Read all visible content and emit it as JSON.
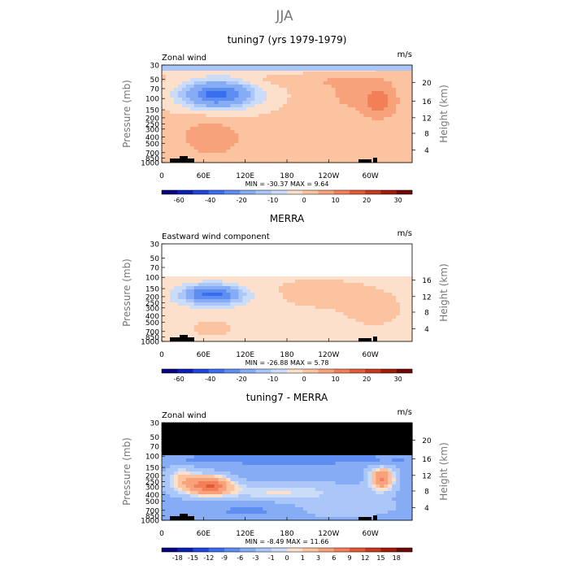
{
  "figure": {
    "title": "JJA"
  },
  "chart_data": [
    {
      "type": "heatmap",
      "title": "tuning7 (yrs 1979-1979)",
      "left_label": "Zonal wind",
      "right_label": "m/s",
      "ylabel": "Pressure (mb)",
      "ylabel_right": "Height (km)",
      "x_ticks": [
        "0",
        "60E",
        "120E",
        "180",
        "120W",
        "60W"
      ],
      "y_ticks": [
        "30",
        "50",
        "70",
        "100",
        "150",
        "200",
        "250",
        "300",
        "400",
        "500",
        "700",
        "850",
        "1000"
      ],
      "height_ticks": [
        "4",
        "8",
        "12",
        "16",
        "20"
      ],
      "stats": "MIN = -30.37   MAX =   9.64",
      "min": -30.37,
      "max": 9.64,
      "colorbar_labels": [
        "-60",
        "-40",
        "-20",
        "-10",
        "0",
        "10",
        "20",
        "30"
      ],
      "data_top_pressure": 30
    },
    {
      "type": "heatmap",
      "title": "MERRA",
      "left_label": "Eastward wind component",
      "right_label": "m/s",
      "ylabel": "Pressure (mb)",
      "ylabel_right": "Height (km)",
      "x_ticks": [
        "0",
        "60E",
        "120E",
        "180",
        "120W",
        "60W"
      ],
      "y_ticks": [
        "30",
        "50",
        "70",
        "100",
        "150",
        "200",
        "250",
        "300",
        "400",
        "500",
        "700",
        "850",
        "1000"
      ],
      "height_ticks": [
        "4",
        "8",
        "12",
        "16"
      ],
      "stats": "MIN = -26.88   MAX =   5.78",
      "min": -26.88,
      "max": 5.78,
      "colorbar_labels": [
        "-60",
        "-40",
        "-20",
        "-10",
        "0",
        "10",
        "20",
        "30"
      ],
      "data_top_pressure": 100
    },
    {
      "type": "heatmap",
      "title": "tuning7 - MERRA",
      "left_label": "Zonal wind",
      "right_label": "m/s",
      "ylabel": "Pressure (mb)",
      "ylabel_right": "Height (km)",
      "x_ticks": [
        "0",
        "60E",
        "120E",
        "180",
        "120W",
        "60W"
      ],
      "y_ticks": [
        "30",
        "50",
        "70",
        "100",
        "150",
        "200",
        "250",
        "300",
        "400",
        "500",
        "700",
        "850",
        "1000"
      ],
      "height_ticks": [
        "4",
        "8",
        "12",
        "16",
        "20"
      ],
      "stats": "MIN = -8.49   MAX =  11.66",
      "min": -8.49,
      "max": 11.66,
      "colorbar_labels": [
        "-18",
        "-15",
        "-12",
        "-9",
        "-6",
        "-3",
        "-1",
        "0",
        "1",
        "3",
        "6",
        "9",
        "12",
        "15",
        "18"
      ],
      "data_top_pressure": 100
    }
  ],
  "colors": {
    "palette": [
      "#08067c",
      "#0b1fb4",
      "#1e46dc",
      "#3a6ef0",
      "#5e8ef2",
      "#86acf5",
      "#abc6f8",
      "#cbdcf8",
      "#fde0cb",
      "#fbc3a0",
      "#f8a27b",
      "#f27f58",
      "#e35a36",
      "#c73a1f",
      "#a11d0b",
      "#6e0a05"
    ],
    "missing": "#000000",
    "topography": "#000000"
  }
}
